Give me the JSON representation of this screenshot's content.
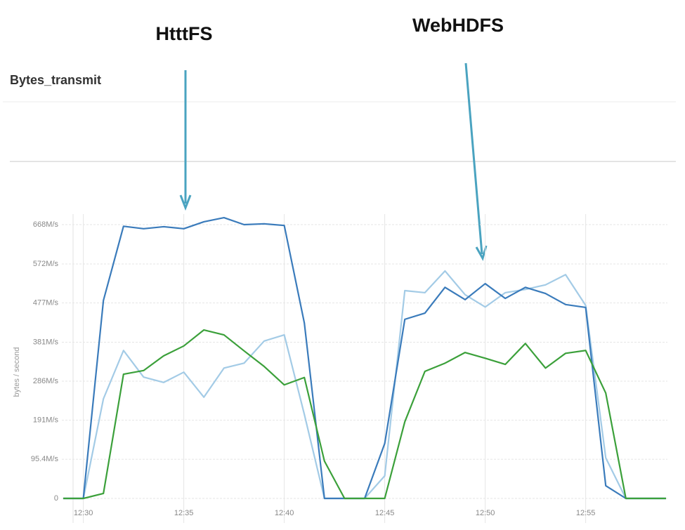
{
  "chart_data": {
    "type": "line",
    "title": "Bytes_transmit",
    "annotations": [
      "HtttFS",
      "WebHDFS"
    ],
    "y_label": "bytes / second",
    "categories": [
      null,
      "12:30",
      null,
      null,
      null,
      null,
      "12:35",
      null,
      null,
      null,
      null,
      "12:40",
      null,
      null,
      null,
      null,
      "12:45",
      null,
      null,
      null,
      null,
      "12:50",
      null,
      null,
      null,
      null,
      "12:55",
      null,
      null,
      null,
      null
    ],
    "ylim": [
      0,
      668
    ],
    "yticks": [
      0,
      {
        "value": 95.4,
        "label": "95.4M/s"
      },
      {
        "value": 191,
        "label": "191M/s"
      },
      {
        "value": 286,
        "label": "286M/s"
      },
      {
        "value": 381,
        "label": "381M/s"
      },
      {
        "value": 477,
        "label": "477M/s"
      },
      {
        "value": 572,
        "label": "572M/s"
      },
      {
        "value": 668,
        "label": "668M/s"
      }
    ],
    "grid": true,
    "series": [
      {
        "color": "#a3cbe6",
        "values": [
          0,
          0,
          243,
          361,
          296,
          283,
          308,
          247,
          318,
          330,
          384,
          399,
          205,
          0,
          0,
          0,
          55,
          507,
          502,
          555,
          497,
          467,
          502,
          510,
          521,
          546,
          471,
          99,
          0,
          0,
          0
        ]
      },
      {
        "color": "#3a7bbb",
        "values": [
          0,
          0,
          483,
          664,
          658,
          663,
          658,
          675,
          685,
          668,
          670,
          666,
          428,
          0,
          0,
          0,
          134,
          437,
          452,
          515,
          485,
          524,
          488,
          515,
          500,
          473,
          466,
          31,
          0,
          0,
          0
        ]
      },
      {
        "color": "#3ba03a",
        "values": [
          0,
          0,
          12,
          303,
          312,
          348,
          372,
          411,
          399,
          360,
          322,
          277,
          295,
          91,
          0,
          0,
          0,
          187,
          310,
          330,
          356,
          342,
          327,
          378,
          318,
          354,
          361,
          257,
          0,
          0,
          0
        ]
      }
    ]
  }
}
